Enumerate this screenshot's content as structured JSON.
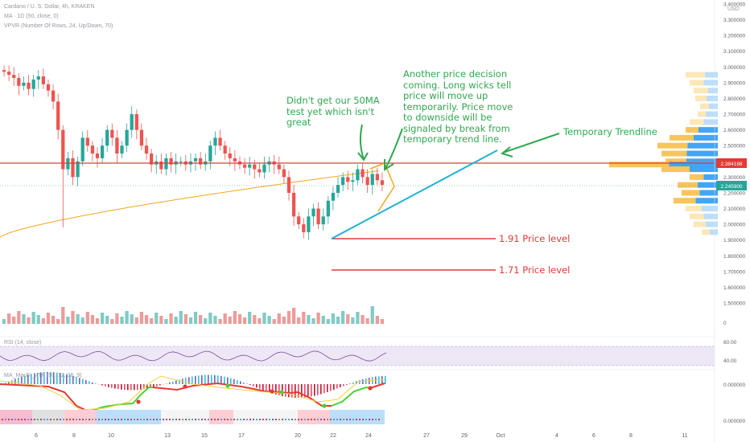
{
  "header": {
    "title": "Cardano / U. S. Dollar, 4h, KRAKEN",
    "indicator_ma": "MA · 1D (50, close, 0)",
    "indicator_vpvr": "VPVR (Number Of Rows, 24, Up/Down, 70)",
    "rsi_label": "RSI (14, close)",
    "macd_label": "MA_MacD_MTF (50, 12, 26, 9)",
    "currency": "USD"
  },
  "annotations": {
    "note_50ma": "Didn't get our 50MA test yet which isn't great",
    "note_decision": "Another price decision coming. Long wicks tell price will move up temporarily. Price move to downside will be signaled by break from temporary trend line.",
    "note_trendline": "Temporary Trendline",
    "level_191": "1.91 Price level",
    "level_171": "1.71 Price level"
  },
  "chart_data": {
    "type": "candlestick",
    "price_axis": {
      "labels": [
        "3.400000",
        "3.300000",
        "3.200000",
        "3.100000",
        "3.000000",
        "2.900000",
        "2.800000",
        "2.700000",
        "2.600000",
        "2.500000",
        "2.400000",
        "2.300000",
        "2.200000",
        "2.100000",
        "2.000000",
        "1.900000",
        "1.800000",
        "1.700000",
        "1.600000",
        "1.500000"
      ],
      "ylim": [
        1.5,
        3.4
      ]
    },
    "x_axis": {
      "tick_labels": [
        "6",
        "8",
        "10",
        "13",
        "15",
        "17",
        "20",
        "22",
        "24",
        "27",
        "29",
        "Oct",
        "4",
        "6",
        "8",
        "11"
      ]
    },
    "price_tags": [
      {
        "value": "2.384188",
        "color": "#e53935"
      },
      {
        "value": "2.245900",
        "color": "#26a69a"
      }
    ],
    "horizontal_lines": [
      {
        "value": 2.384,
        "color": "#e53935",
        "name": "resistance"
      },
      {
        "value": 1.91,
        "color": "#e53935",
        "name": "1.91 level"
      },
      {
        "value": 1.71,
        "color": "#e53935",
        "name": "1.71 level"
      }
    ],
    "candles_close_approx": [
      2.97,
      2.95,
      2.93,
      2.88,
      2.9,
      2.86,
      2.92,
      2.94,
      2.89,
      2.85,
      2.78,
      2.6,
      2.35,
      2.42,
      2.3,
      2.4,
      2.55,
      2.5,
      2.45,
      2.42,
      2.5,
      2.6,
      2.55,
      2.45,
      2.5,
      2.6,
      2.7,
      2.6,
      2.5,
      2.45,
      2.38,
      2.4,
      2.35,
      2.42,
      2.38,
      2.4,
      2.4,
      2.38,
      2.4,
      2.42,
      2.38,
      2.4,
      2.5,
      2.55,
      2.5,
      2.45,
      2.42,
      2.4,
      2.38,
      2.36,
      2.38,
      2.35,
      2.33,
      2.38,
      2.4,
      2.38,
      2.35,
      2.3,
      2.2,
      2.05,
      2.0,
      1.95,
      2.05,
      2.1,
      2.0,
      2.05,
      2.15,
      2.2,
      2.25,
      2.3,
      2.27,
      2.28,
      2.35,
      2.3,
      2.25,
      2.32,
      2.28,
      2.25
    ],
    "ma50_1d": {
      "color": "#f5a623",
      "start": 1.92,
      "end": 2.34
    },
    "ylim_sub": {
      "rsi": [
        40,
        80
      ],
      "macd": [
        0,
        0
      ]
    },
    "rsi_axis": [
      "80.00",
      "40.00"
    ],
    "macd_axis": [
      "0.000000",
      "0.000000"
    ],
    "volume_axis": "0"
  },
  "colors": {
    "up": "#26a69a",
    "down": "#ef5350",
    "trendline": "#1fb2d4",
    "annotation": "#2fa84f",
    "level": "#e53935"
  }
}
